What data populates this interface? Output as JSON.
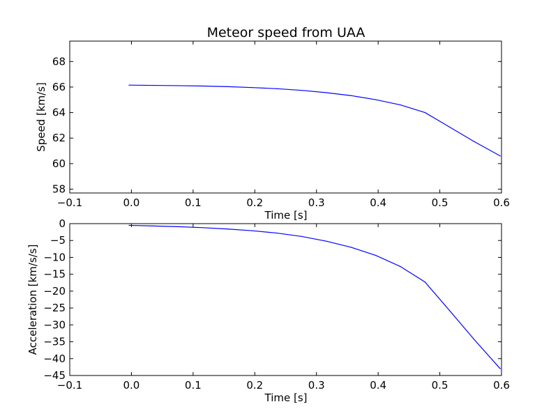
{
  "chart_data": [
    {
      "type": "line",
      "title": "Meteor speed from  UAA",
      "xlabel": "Time [s]",
      "ylabel": "Speed [km/s]",
      "xlim": [
        -0.1,
        0.6
      ],
      "ylim": [
        57.7,
        69.6
      ],
      "xticks": [
        -0.1,
        0.0,
        0.1,
        0.2,
        0.3,
        0.4,
        0.5,
        0.6
      ],
      "xtick_labels": [
        "−0.1",
        "0.0",
        "0.1",
        "0.2",
        "0.3",
        "0.4",
        "0.5",
        "0.6"
      ],
      "yticks": [
        58,
        60,
        62,
        64,
        66,
        68
      ],
      "ytick_labels": [
        "58",
        "60",
        "62",
        "64",
        "66",
        "68"
      ],
      "grid": false,
      "color": "#0000ff",
      "series": [
        {
          "x": [
            -0.004,
            0.036,
            0.076,
            0.116,
            0.156,
            0.196,
            0.236,
            0.276,
            0.316,
            0.356,
            0.396,
            0.436,
            0.476,
            0.516,
            0.556,
            0.598
          ],
          "y": [
            66.15,
            66.13,
            66.11,
            66.08,
            66.03,
            65.96,
            65.87,
            65.74,
            65.56,
            65.33,
            65.01,
            64.6,
            64.0,
            62.86,
            61.72,
            60.6
          ]
        }
      ]
    },
    {
      "type": "line",
      "title": "",
      "xlabel": "Time [s]",
      "ylabel": "Acceleration [km/s/s]",
      "xlim": [
        -0.1,
        0.6
      ],
      "ylim": [
        -45,
        0
      ],
      "xticks": [
        -0.1,
        0.0,
        0.1,
        0.2,
        0.3,
        0.4,
        0.5,
        0.6
      ],
      "xtick_labels": [
        "−0.1",
        "0.0",
        "0.1",
        "0.2",
        "0.3",
        "0.4",
        "0.5",
        "0.6"
      ],
      "yticks": [
        0,
        -5,
        -10,
        -15,
        -20,
        -25,
        -30,
        -35,
        -40,
        -45
      ],
      "ytick_labels": [
        "0",
        "−5",
        "−10",
        "−15",
        "−20",
        "−25",
        "−30",
        "−35",
        "−40",
        "−45"
      ],
      "grid": false,
      "color": "#0000ff",
      "series": [
        {
          "x": [
            -0.004,
            0.036,
            0.076,
            0.116,
            0.156,
            0.196,
            0.236,
            0.276,
            0.316,
            0.356,
            0.396,
            0.436,
            0.476,
            0.516,
            0.556,
            0.598
          ],
          "y": [
            -0.5,
            -0.7,
            -0.9,
            -1.2,
            -1.6,
            -2.1,
            -2.8,
            -3.8,
            -5.2,
            -7.0,
            -9.4,
            -12.7,
            -17.3,
            -25.8,
            -34.4,
            -43.0
          ]
        }
      ]
    }
  ]
}
